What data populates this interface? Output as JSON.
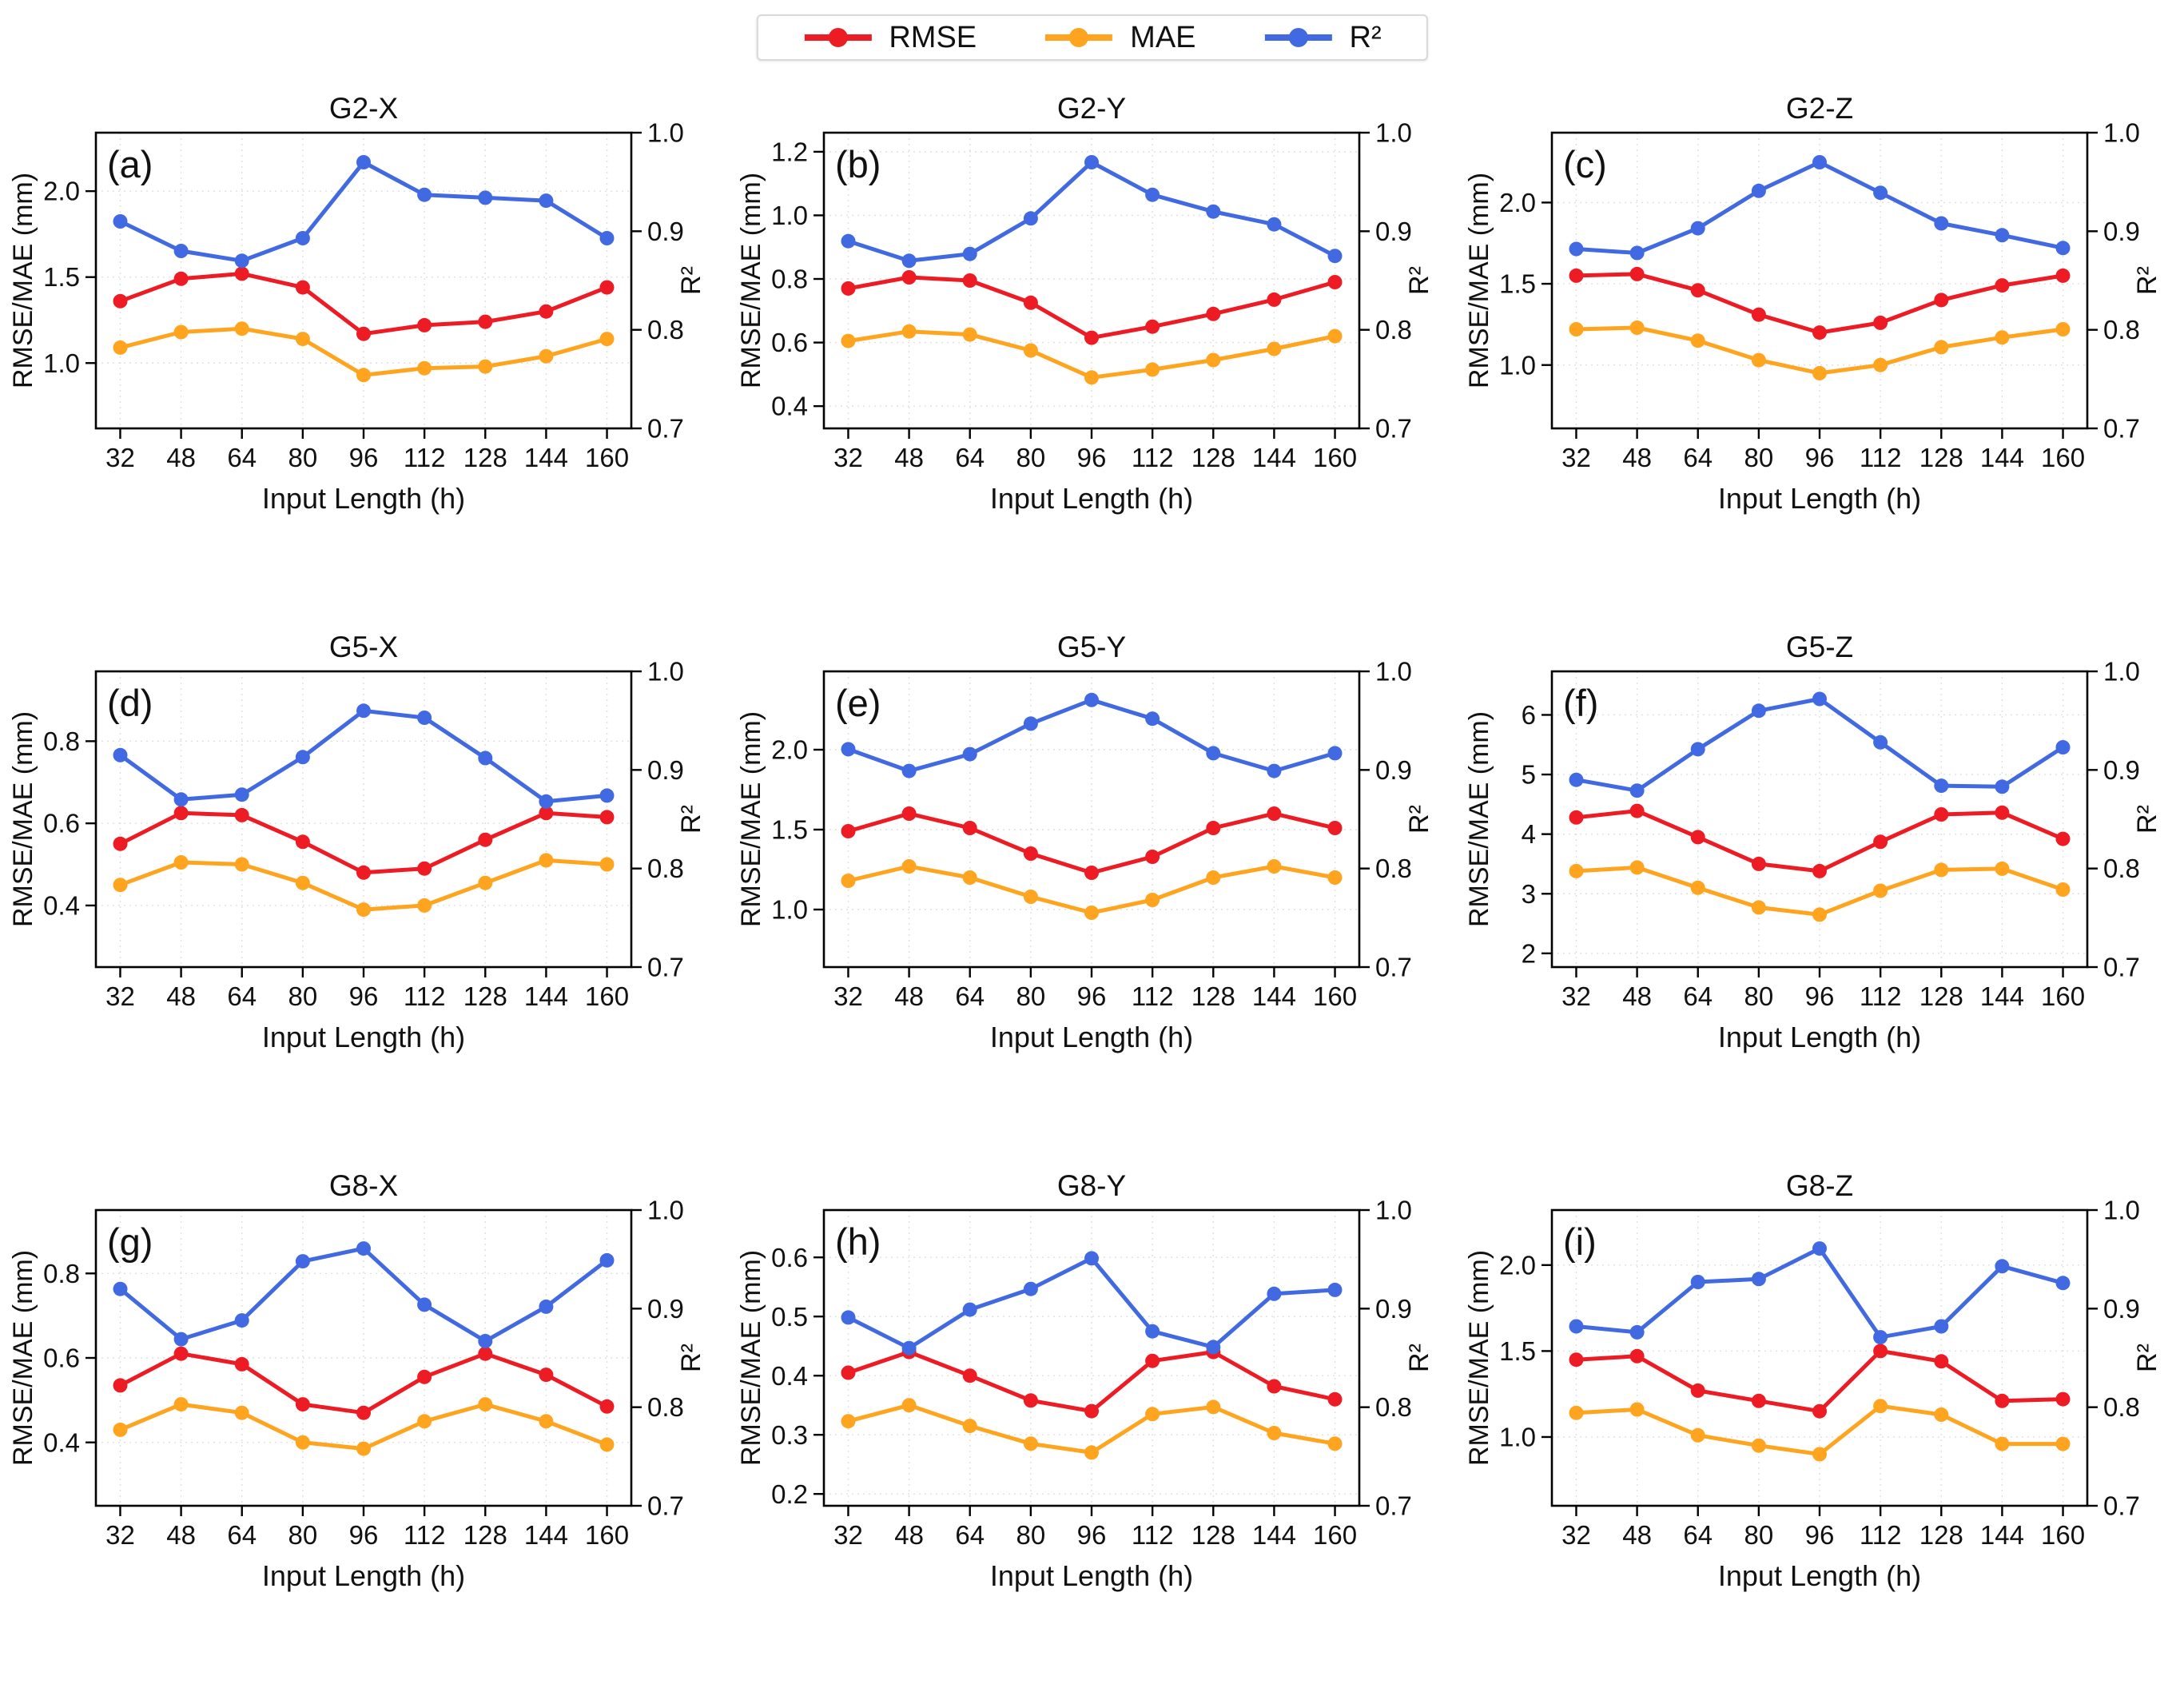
{
  "figure": {
    "legend": {
      "items": [
        {
          "label": "RMSE",
          "color": "#ed1c24"
        },
        {
          "label": "MAE",
          "color": "#ffa41f"
        },
        {
          "label": "R²",
          "color": "#4169e1"
        }
      ]
    },
    "shared": {
      "x_label": "Input Length (h)",
      "left_y_label": "RMSE/MAE (mm)",
      "right_y_label": "R²",
      "x_categories": [
        32,
        48,
        64,
        80,
        96,
        112,
        128,
        144,
        160
      ],
      "right_ticks": [
        0.7,
        0.8,
        0.9,
        1.0
      ],
      "right_tick_labels": [
        "0.7",
        "0.8",
        "0.9",
        "1.0"
      ],
      "right_lim": [
        0.7,
        1.0
      ],
      "grid_color": "#dfdfdf",
      "axis_color": "#000000",
      "text_color": "#111111"
    }
  },
  "chart_data": [
    {
      "type": "line",
      "panel": "(a)",
      "title": "G2-X",
      "x": [
        32,
        48,
        64,
        80,
        96,
        112,
        128,
        144,
        160
      ],
      "left_ticks": [
        1.0,
        1.5,
        2.0
      ],
      "left_tick_labels": [
        "1.0",
        "1.5",
        "2.0"
      ],
      "left_lim": [
        0.62,
        2.34
      ],
      "right_lim": [
        0.7,
        1.0
      ],
      "series": [
        {
          "name": "RMSE",
          "axis": "left",
          "values": [
            1.36,
            1.49,
            1.52,
            1.44,
            1.17,
            1.22,
            1.24,
            1.3,
            1.44
          ]
        },
        {
          "name": "MAE",
          "axis": "left",
          "values": [
            1.09,
            1.18,
            1.2,
            1.14,
            0.93,
            0.97,
            0.98,
            1.04,
            1.14
          ]
        },
        {
          "name": "R²",
          "axis": "right",
          "values": [
            0.91,
            0.88,
            0.87,
            0.893,
            0.97,
            0.937,
            0.934,
            0.931,
            0.893
          ]
        }
      ]
    },
    {
      "type": "line",
      "panel": "(b)",
      "title": "G2-Y",
      "x": [
        32,
        48,
        64,
        80,
        96,
        112,
        128,
        144,
        160
      ],
      "left_ticks": [
        0.4,
        0.6,
        0.8,
        1.0,
        1.2
      ],
      "left_tick_labels": [
        "0.4",
        "0.6",
        "0.8",
        "1.0",
        "1.2"
      ],
      "left_lim": [
        0.33,
        1.26
      ],
      "right_lim": [
        0.7,
        1.0
      ],
      "series": [
        {
          "name": "RMSE",
          "axis": "left",
          "values": [
            0.77,
            0.805,
            0.795,
            0.725,
            0.615,
            0.65,
            0.69,
            0.735,
            0.79
          ]
        },
        {
          "name": "MAE",
          "axis": "left",
          "values": [
            0.605,
            0.635,
            0.625,
            0.575,
            0.49,
            0.515,
            0.545,
            0.58,
            0.62
          ]
        },
        {
          "name": "R²",
          "axis": "right",
          "values": [
            0.89,
            0.87,
            0.877,
            0.913,
            0.97,
            0.937,
            0.92,
            0.907,
            0.875
          ]
        }
      ]
    },
    {
      "type": "line",
      "panel": "(c)",
      "title": "G2-Z",
      "x": [
        32,
        48,
        64,
        80,
        96,
        112,
        128,
        144,
        160
      ],
      "left_ticks": [
        1.0,
        1.5,
        2.0
      ],
      "left_tick_labels": [
        "1.0",
        "1.5",
        "2.0"
      ],
      "left_lim": [
        0.61,
        2.43
      ],
      "right_lim": [
        0.7,
        1.0
      ],
      "series": [
        {
          "name": "RMSE",
          "axis": "left",
          "values": [
            1.55,
            1.56,
            1.46,
            1.31,
            1.2,
            1.26,
            1.4,
            1.49,
            1.55
          ]
        },
        {
          "name": "MAE",
          "axis": "left",
          "values": [
            1.22,
            1.23,
            1.15,
            1.03,
            0.95,
            1.0,
            1.11,
            1.17,
            1.22
          ]
        },
        {
          "name": "R²",
          "axis": "right",
          "values": [
            0.882,
            0.878,
            0.903,
            0.941,
            0.97,
            0.939,
            0.908,
            0.896,
            0.883
          ]
        }
      ]
    },
    {
      "type": "line",
      "panel": "(d)",
      "title": "G5-X",
      "x": [
        32,
        48,
        64,
        80,
        96,
        112,
        128,
        144,
        160
      ],
      "left_ticks": [
        0.4,
        0.6,
        0.8
      ],
      "left_tick_labels": [
        "0.4",
        "0.6",
        "0.8"
      ],
      "left_lim": [
        0.25,
        0.97
      ],
      "right_lim": [
        0.7,
        1.0
      ],
      "series": [
        {
          "name": "RMSE",
          "axis": "left",
          "values": [
            0.55,
            0.625,
            0.62,
            0.555,
            0.48,
            0.49,
            0.56,
            0.625,
            0.615
          ]
        },
        {
          "name": "MAE",
          "axis": "left",
          "values": [
            0.45,
            0.505,
            0.5,
            0.455,
            0.39,
            0.4,
            0.455,
            0.51,
            0.5
          ]
        },
        {
          "name": "R²",
          "axis": "right",
          "values": [
            0.915,
            0.87,
            0.875,
            0.913,
            0.96,
            0.953,
            0.912,
            0.868,
            0.874
          ]
        }
      ]
    },
    {
      "type": "line",
      "panel": "(e)",
      "title": "G5-Y",
      "x": [
        32,
        48,
        64,
        80,
        96,
        112,
        128,
        144,
        160
      ],
      "left_ticks": [
        1.0,
        1.5,
        2.0
      ],
      "left_tick_labels": [
        "1.0",
        "1.5",
        "2.0"
      ],
      "left_lim": [
        0.64,
        2.49
      ],
      "right_lim": [
        0.7,
        1.0
      ],
      "series": [
        {
          "name": "RMSE",
          "axis": "left",
          "values": [
            1.49,
            1.6,
            1.51,
            1.35,
            1.23,
            1.33,
            1.51,
            1.6,
            1.51
          ]
        },
        {
          "name": "MAE",
          "axis": "left",
          "values": [
            1.18,
            1.27,
            1.2,
            1.08,
            0.98,
            1.06,
            1.2,
            1.27,
            1.2
          ]
        },
        {
          "name": "R²",
          "axis": "right",
          "values": [
            0.921,
            0.899,
            0.916,
            0.947,
            0.971,
            0.952,
            0.917,
            0.899,
            0.917
          ]
        }
      ]
    },
    {
      "type": "line",
      "panel": "(f)",
      "title": "G5-Z",
      "x": [
        32,
        48,
        64,
        80,
        96,
        112,
        128,
        144,
        160
      ],
      "left_ticks": [
        2,
        3,
        4,
        5,
        6
      ],
      "left_tick_labels": [
        "2",
        "3",
        "4",
        "5",
        "6"
      ],
      "left_lim": [
        1.77,
        6.73
      ],
      "right_lim": [
        0.7,
        1.0
      ],
      "series": [
        {
          "name": "RMSE",
          "axis": "left",
          "values": [
            4.28,
            4.39,
            3.95,
            3.5,
            3.38,
            3.87,
            4.33,
            4.36,
            3.92
          ]
        },
        {
          "name": "MAE",
          "axis": "left",
          "values": [
            3.38,
            3.44,
            3.1,
            2.77,
            2.65,
            3.05,
            3.4,
            3.42,
            3.07
          ]
        },
        {
          "name": "R²",
          "axis": "right",
          "values": [
            0.89,
            0.879,
            0.921,
            0.96,
            0.972,
            0.928,
            0.884,
            0.883,
            0.923
          ]
        }
      ]
    },
    {
      "type": "line",
      "panel": "(g)",
      "title": "G8-X",
      "x": [
        32,
        48,
        64,
        80,
        96,
        112,
        128,
        144,
        160
      ],
      "left_ticks": [
        0.4,
        0.6,
        0.8
      ],
      "left_tick_labels": [
        "0.4",
        "0.6",
        "0.8"
      ],
      "left_lim": [
        0.25,
        0.95
      ],
      "right_lim": [
        0.7,
        1.0
      ],
      "series": [
        {
          "name": "RMSE",
          "axis": "left",
          "values": [
            0.535,
            0.61,
            0.585,
            0.49,
            0.47,
            0.555,
            0.61,
            0.56,
            0.485
          ]
        },
        {
          "name": "MAE",
          "axis": "left",
          "values": [
            0.43,
            0.49,
            0.47,
            0.4,
            0.385,
            0.45,
            0.49,
            0.45,
            0.395
          ]
        },
        {
          "name": "R²",
          "axis": "right",
          "values": [
            0.92,
            0.869,
            0.888,
            0.948,
            0.961,
            0.904,
            0.867,
            0.902,
            0.949
          ]
        }
      ]
    },
    {
      "type": "line",
      "panel": "(h)",
      "title": "G8-Y",
      "x": [
        32,
        48,
        64,
        80,
        96,
        112,
        128,
        144,
        160
      ],
      "left_ticks": [
        0.2,
        0.3,
        0.4,
        0.5,
        0.6
      ],
      "left_tick_labels": [
        "0.2",
        "0.3",
        "0.4",
        "0.5",
        "0.6"
      ],
      "left_lim": [
        0.18,
        0.68
      ],
      "right_lim": [
        0.7,
        1.0
      ],
      "series": [
        {
          "name": "RMSE",
          "axis": "left",
          "values": [
            0.405,
            0.44,
            0.4,
            0.358,
            0.34,
            0.425,
            0.44,
            0.382,
            0.36
          ]
        },
        {
          "name": "MAE",
          "axis": "left",
          "values": [
            0.323,
            0.35,
            0.315,
            0.285,
            0.27,
            0.335,
            0.347,
            0.303,
            0.285
          ]
        },
        {
          "name": "R²",
          "axis": "right",
          "values": [
            0.891,
            0.86,
            0.899,
            0.92,
            0.951,
            0.877,
            0.861,
            0.915,
            0.919
          ]
        }
      ]
    },
    {
      "type": "line",
      "panel": "(i)",
      "title": "G8-Z",
      "x": [
        32,
        48,
        64,
        80,
        96,
        112,
        128,
        144,
        160
      ],
      "left_ticks": [
        1.0,
        1.5,
        2.0
      ],
      "left_tick_labels": [
        "1.0",
        "1.5",
        "2.0"
      ],
      "left_lim": [
        0.6,
        2.32
      ],
      "right_lim": [
        0.7,
        1.0
      ],
      "series": [
        {
          "name": "RMSE",
          "axis": "left",
          "values": [
            1.45,
            1.47,
            1.27,
            1.21,
            1.15,
            1.5,
            1.44,
            1.21,
            1.22
          ]
        },
        {
          "name": "MAE",
          "axis": "left",
          "values": [
            1.14,
            1.16,
            1.01,
            0.95,
            0.9,
            1.18,
            1.13,
            0.96,
            0.96
          ]
        },
        {
          "name": "R²",
          "axis": "right",
          "values": [
            0.882,
            0.876,
            0.927,
            0.93,
            0.961,
            0.871,
            0.882,
            0.943,
            0.926
          ]
        }
      ]
    }
  ]
}
